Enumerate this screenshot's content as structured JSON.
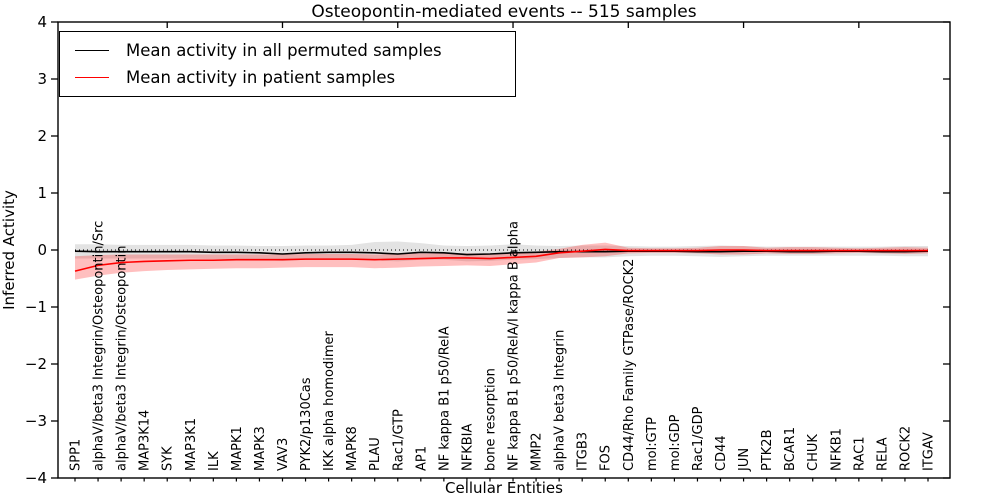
{
  "chart_data": {
    "type": "line",
    "title": "Osteopontin-mediated events -- 515 samples",
    "xlabel": "Cellular Entities",
    "ylabel": "Inferred Activity",
    "ylim": [
      -4,
      4
    ],
    "yticks": [
      -4,
      -3,
      -2,
      -1,
      0,
      1,
      2,
      3,
      4
    ],
    "grid": false,
    "zero_line": true,
    "legend_position": "upper left",
    "categories": [
      "SPP1",
      "alphaV/beta3 Integrin/Osteopontin/Src",
      "alphaV/beta3 Integrin/Osteopontin",
      "MAP3K14",
      "SYK",
      "MAP3K1",
      "ILK",
      "MAPK1",
      "MAPK3",
      "VAV3",
      "PYK2/p130Cas",
      "IKK alpha homodimer",
      "MAPK8",
      "PLAU",
      "Rac1/GTP",
      "AP1",
      "NF kappa B1 p50/RelA",
      "NFKBIA",
      "bone resorption",
      "NF kappa B1 p50/RelA/I kappa B alpha",
      "MMP2",
      "alphaV beta3 Integrin",
      "ITGB3",
      "FOS",
      "CD44/Rho Family GTPase/ROCK2",
      "mol:GTP",
      "mol:GDP",
      "Rac1/GDP",
      "CD44",
      "JUN",
      "PTK2B",
      "BCAR1",
      "CHUK",
      "NFKB1",
      "RAC1",
      "RELA",
      "ROCK2",
      "ITGAV"
    ],
    "series": [
      {
        "key": "permuted",
        "name": "Mean activity in all permuted samples",
        "color": "#000000",
        "band_color": "rgba(0,0,0,0.11)",
        "values": [
          -0.02,
          -0.03,
          -0.03,
          -0.03,
          -0.03,
          -0.03,
          -0.04,
          -0.04,
          -0.05,
          -0.07,
          -0.05,
          -0.04,
          -0.04,
          -0.05,
          -0.07,
          -0.04,
          -0.05,
          -0.08,
          -0.07,
          -0.05,
          -0.04,
          -0.03,
          -0.03,
          -0.03,
          -0.02,
          -0.02,
          -0.02,
          -0.03,
          -0.03,
          -0.02,
          -0.02,
          -0.03,
          -0.03,
          -0.02,
          -0.02,
          -0.03,
          -0.03,
          -0.02
        ],
        "band_upper": [
          0.1,
          0.1,
          0.09,
          0.09,
          0.09,
          0.09,
          0.08,
          0.08,
          0.07,
          0.07,
          0.08,
          0.08,
          0.09,
          0.14,
          0.15,
          0.12,
          0.08,
          0.07,
          0.08,
          0.1,
          0.08,
          0.07,
          0.08,
          0.08,
          0.07,
          0.06,
          0.06,
          0.07,
          0.08,
          0.07,
          0.06,
          0.06,
          0.06,
          0.06,
          0.06,
          0.06,
          0.07,
          0.07
        ],
        "band_lower": [
          -0.15,
          -0.15,
          -0.15,
          -0.15,
          -0.15,
          -0.15,
          -0.16,
          -0.16,
          -0.17,
          -0.19,
          -0.17,
          -0.16,
          -0.16,
          -0.18,
          -0.2,
          -0.17,
          -0.17,
          -0.2,
          -0.19,
          -0.17,
          -0.16,
          -0.14,
          -0.13,
          -0.13,
          -0.11,
          -0.1,
          -0.1,
          -0.11,
          -0.12,
          -0.11,
          -0.1,
          -0.1,
          -0.1,
          -0.1,
          -0.1,
          -0.1,
          -0.11,
          -0.11
        ]
      },
      {
        "key": "patient",
        "name": "Mean activity in patient samples",
        "color": "#ff0000",
        "band_color": "rgba(255,0,0,0.25)",
        "values": [
          -0.37,
          -0.27,
          -0.22,
          -0.2,
          -0.19,
          -0.18,
          -0.18,
          -0.17,
          -0.17,
          -0.17,
          -0.16,
          -0.16,
          -0.16,
          -0.17,
          -0.16,
          -0.15,
          -0.14,
          -0.14,
          -0.15,
          -0.13,
          -0.11,
          -0.05,
          -0.02,
          0.01,
          -0.01,
          -0.01,
          -0.01,
          -0.01,
          0.0,
          0.0,
          -0.01,
          -0.01,
          -0.01,
          -0.01,
          -0.01,
          -0.01,
          -0.01,
          -0.01
        ],
        "band_upper": [
          -0.11,
          -0.09,
          -0.08,
          -0.08,
          -0.08,
          -0.08,
          -0.08,
          -0.08,
          -0.08,
          -0.08,
          -0.07,
          -0.07,
          -0.07,
          -0.08,
          -0.07,
          -0.06,
          -0.06,
          -0.06,
          -0.06,
          -0.05,
          -0.03,
          0.02,
          0.09,
          0.13,
          0.04,
          0.03,
          0.03,
          0.04,
          0.07,
          0.07,
          0.04,
          0.05,
          0.05,
          0.04,
          0.03,
          0.04,
          0.05,
          0.04
        ],
        "band_lower": [
          -0.52,
          -0.45,
          -0.4,
          -0.37,
          -0.35,
          -0.34,
          -0.33,
          -0.32,
          -0.32,
          -0.31,
          -0.3,
          -0.3,
          -0.3,
          -0.32,
          -0.31,
          -0.29,
          -0.28,
          -0.27,
          -0.28,
          -0.25,
          -0.22,
          -0.14,
          -0.13,
          -0.11,
          -0.06,
          -0.05,
          -0.05,
          -0.06,
          -0.08,
          -0.08,
          -0.06,
          -0.07,
          -0.07,
          -0.06,
          -0.05,
          -0.06,
          -0.07,
          -0.06
        ]
      }
    ]
  }
}
